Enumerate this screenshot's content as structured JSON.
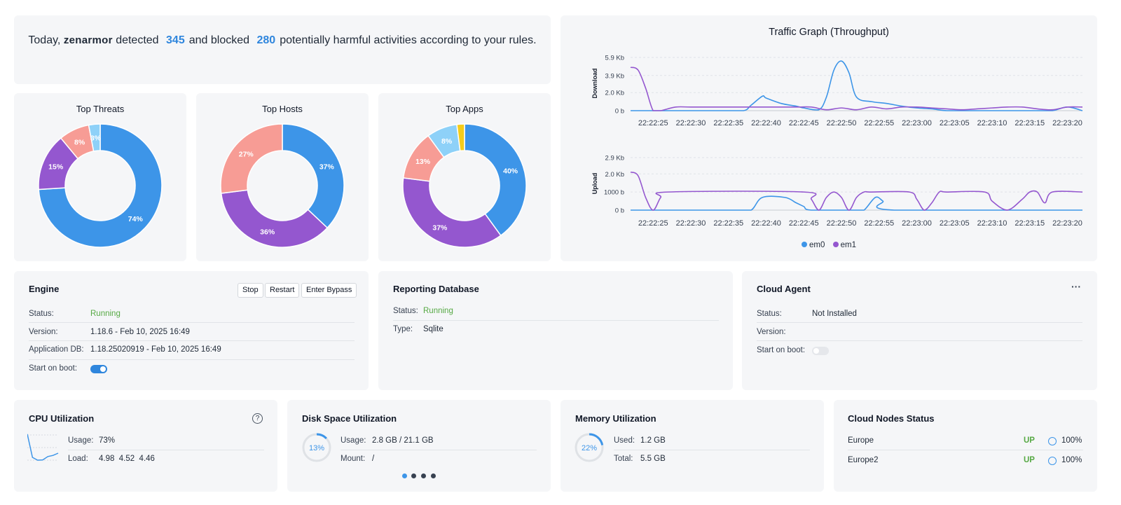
{
  "banner": {
    "prefix": "Today,",
    "brand": "zenarmor",
    "detected_label": "detected",
    "detected": "345",
    "blocked_label": "and blocked",
    "blocked": "280",
    "suffix": "potentially harmful activities according to your rules."
  },
  "donuts": [
    {
      "title": "Top Threats",
      "chart_data": {
        "type": "pie",
        "labels": [
          "74%",
          "15%",
          "8%",
          "3%"
        ],
        "values": [
          74,
          15,
          8,
          3
        ],
        "colors": [
          "#3d95e8",
          "#9457cf",
          "#f79c95",
          "#8ed1f8"
        ]
      }
    },
    {
      "title": "Top Hosts",
      "chart_data": {
        "type": "pie",
        "labels": [
          "37%",
          "36%",
          "27%"
        ],
        "values": [
          37,
          36,
          27
        ],
        "colors": [
          "#3d95e8",
          "#9457cf",
          "#f79c95"
        ]
      }
    },
    {
      "title": "Top Apps",
      "chart_data": {
        "type": "pie",
        "labels": [
          "40%",
          "37%",
          "13%",
          "8%",
          ""
        ],
        "values": [
          40,
          37,
          13,
          8,
          2
        ],
        "colors": [
          "#3d95e8",
          "#9457cf",
          "#f79c95",
          "#8ed1f8",
          "#f5cc1a"
        ]
      }
    }
  ],
  "traffic": {
    "title": "Traffic Graph (Throughput)",
    "download_label": "Download",
    "upload_label": "Upload",
    "download_ticks": [
      "5.9 Kb",
      "3.9 Kb",
      "2.0 Kb",
      "0 b"
    ],
    "upload_ticks": [
      "2.9 Kb",
      "2.0 Kb",
      "1000 b",
      "0 b"
    ],
    "legend": [
      {
        "name": "em0",
        "color": "#3d95e8"
      },
      {
        "name": "em1",
        "color": "#9457cf"
      }
    ],
    "chart_data": {
      "type": "line",
      "x": [
        "22:22:25",
        "22:22:30",
        "22:22:35",
        "22:22:40",
        "22:22:45",
        "22:22:50",
        "22:22:55",
        "22:23:00",
        "22:23:05",
        "22:23:10",
        "22:23:15",
        "22:23:20"
      ],
      "download": {
        "ylim": [
          0,
          5.9
        ],
        "ytick_values": [
          5.9,
          3.9,
          2.0,
          0
        ],
        "series": [
          {
            "name": "em0",
            "t": [
              22,
              24,
              34,
              37,
              38,
              39.5,
              40,
              42,
              44,
              45,
              47,
              48,
              49,
              50,
              51,
              52,
              54,
              56,
              58,
              60,
              62,
              64,
              68,
              72,
              74,
              76,
              78,
              80,
              82
            ],
            "values": [
              0,
              0,
              0,
              0,
              0.6,
              1.6,
              1.4,
              0.8,
              0.5,
              0.3,
              0.1,
              1.5,
              4.5,
              5.5,
              4.2,
              1.5,
              1.0,
              0.8,
              0.5,
              0.3,
              0.2,
              0,
              0,
              0,
              0,
              0,
              0,
              0.4,
              0
            ]
          },
          {
            "name": "em1",
            "t": [
              22,
              23,
              24,
              25,
              26,
              28,
              30,
              34,
              36,
              40,
              44,
              46,
              48,
              50,
              52,
              54,
              56,
              58,
              60,
              62,
              64,
              66,
              68,
              70,
              72,
              74,
              76,
              78,
              80,
              82
            ],
            "values": [
              4.8,
              4.5,
              2.5,
              0,
              0,
              0.4,
              0.4,
              0.4,
              0.4,
              0.4,
              0.4,
              0.4,
              0.1,
              0.3,
              0.1,
              0.4,
              0.2,
              0.4,
              0.4,
              0.3,
              0.2,
              0.1,
              0.2,
              0.3,
              0.4,
              0.4,
              0.2,
              0.1,
              0.4,
              0.4
            ]
          }
        ]
      },
      "upload": {
        "ylim": [
          0,
          2.9
        ],
        "ytick_values": [
          2.9,
          2.0,
          1.0,
          0
        ],
        "series": [
          {
            "name": "em0",
            "t": [
              22,
              36,
              38,
              39.5,
              42.5,
              44,
              45,
              46,
              52,
              53,
              54.5,
              55.5,
              57,
              82
            ],
            "values": [
              0,
              0,
              0,
              0.7,
              0.7,
              0.4,
              0.2,
              0,
              0,
              0,
              0.7,
              0.5,
              0,
              0
            ]
          },
          {
            "name": "em1",
            "t": [
              22,
              23,
              24,
              25,
              26,
              27,
              45,
              46,
              47,
              48,
              49,
              50,
              51,
              52,
              53,
              54,
              59,
              60,
              61,
              62,
              63,
              64,
              69,
              70,
              72,
              74,
              75,
              76,
              77,
              78,
              82
            ],
            "values": [
              2.1,
              1.9,
              0.7,
              0,
              0.7,
              1.0,
              1.0,
              0.6,
              0,
              0.7,
              1.0,
              0.7,
              0,
              0.7,
              1.0,
              1.0,
              1.0,
              0.6,
              0,
              0.4,
              1.0,
              1.0,
              1.0,
              0.5,
              0,
              0.6,
              1.0,
              1.0,
              0.4,
              1.0,
              1.0
            ]
          }
        ]
      }
    }
  },
  "engine": {
    "title": "Engine",
    "buttons": {
      "stop": "Stop",
      "restart": "Restart",
      "bypass": "Enter Bypass"
    },
    "status_label": "Status:",
    "status": "Running",
    "version_label": "Version:",
    "version": "1.18.6 - Feb 10, 2025 16:49",
    "appdb_label": "Application DB:",
    "appdb": "1.18.25020919 - Feb 10, 2025 16:49",
    "boot_label": "Start on boot:",
    "boot_on": true
  },
  "reporting": {
    "title": "Reporting Database",
    "status_label": "Status:",
    "status": "Running",
    "type_label": "Type:",
    "type": "Sqlite"
  },
  "cloud_agent": {
    "title": "Cloud Agent",
    "menu": "···",
    "status_label": "Status:",
    "status": "Not Installed",
    "version_label": "Version:",
    "version": "",
    "boot_label": "Start on boot:",
    "boot_on": false
  },
  "cpu": {
    "title": "CPU Utilization",
    "help": "?",
    "usage_label": "Usage:",
    "usage": "73%",
    "load_label": "Load:",
    "load": "4.98  4.52  4.46",
    "sparkline": [
      0.98,
      0.15,
      0.05,
      0.06,
      0.18,
      0.22,
      0.3
    ]
  },
  "disk": {
    "title": "Disk Space Utilization",
    "percent": "13%",
    "fraction": 0.13,
    "usage_label": "Usage:",
    "usage": "2.8 GB / 21.1 GB",
    "mount_label": "Mount:",
    "mount": "/",
    "pager": {
      "pages": 4,
      "active": 1
    }
  },
  "memory": {
    "title": "Memory Utilization",
    "percent": "22%",
    "fraction": 0.22,
    "used_label": "Used:",
    "used": "1.2 GB",
    "total_label": "Total:",
    "total": "5.5 GB"
  },
  "cloud_nodes": {
    "title": "Cloud Nodes Status",
    "nodes": [
      {
        "name": "Europe",
        "state": "UP",
        "percent": "100%"
      },
      {
        "name": "Europe2",
        "state": "UP",
        "percent": "100%"
      }
    ]
  }
}
